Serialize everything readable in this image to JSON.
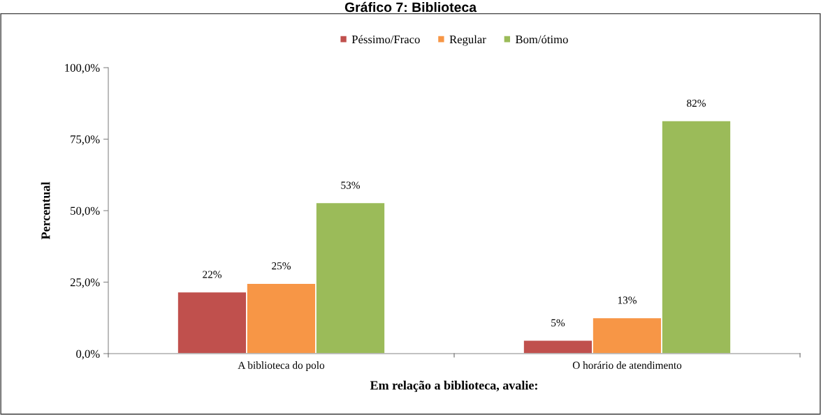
{
  "chart_data": {
    "type": "bar",
    "title": "Gráfico 7: Biblioteca",
    "xlabel": "Em relação a biblioteca, avalie:",
    "ylabel": "Percentual",
    "categories": [
      "A biblioteca do polo",
      "O horário de atendimento"
    ],
    "series": [
      {
        "name": "Péssimo/Fraco",
        "color": "#c0504d",
        "values": [
          21.6,
          4.7
        ],
        "value_labels": [
          "22%",
          "5%"
        ]
      },
      {
        "name": "Regular",
        "color": "#f79646",
        "values": [
          24.6,
          12.6
        ],
        "value_labels": [
          "25%",
          "13%"
        ]
      },
      {
        "name": "Bom/ótimo",
        "color": "#9bbb59",
        "values": [
          52.8,
          81.5
        ],
        "value_labels": [
          "53%",
          "82%"
        ]
      }
    ],
    "ylim": [
      0,
      100
    ],
    "yticks": [
      {
        "value": 0,
        "label": "0,0%"
      },
      {
        "value": 25,
        "label": "25,0%"
      },
      {
        "value": 50,
        "label": "50,0%"
      },
      {
        "value": 75,
        "label": "75,0%"
      },
      {
        "value": 100,
        "label": "100,0%"
      }
    ],
    "grid": false,
    "legend": "top"
  }
}
